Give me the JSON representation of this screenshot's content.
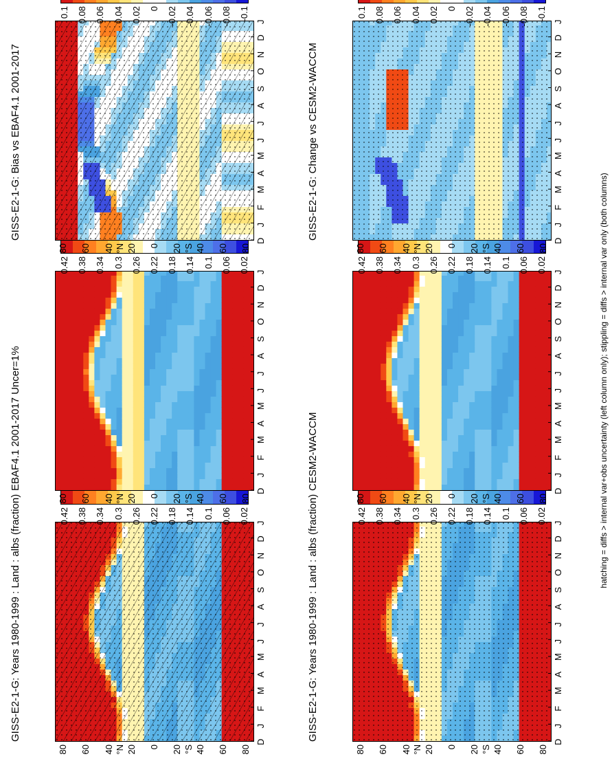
{
  "footnote": "hatching = diffs > internal var+obs uncertainty (left column only); stippling = diffs > internal var only (both columns)",
  "palette_absolute": [
    "#1717d6",
    "#3d4fe0",
    "#4d6fe8",
    "#4d8be8",
    "#4aa3e0",
    "#5ab4e8",
    "#7cc6ee",
    "#a6dbf4",
    "#ffffff",
    "#fff4b0",
    "#ffe47a",
    "#ffc94a",
    "#ffa830",
    "#ff8020",
    "#f04a14",
    "#d61616"
  ],
  "palette_difference": [
    "#1717d6",
    "#3d4fe0",
    "#4d6fe8",
    "#4d8be8",
    "#4aa3e0",
    "#7cc6ee",
    "#a6dbf4",
    "#ffffff",
    "#ffffff",
    "#fff4b0",
    "#ffe47a",
    "#ffc94a",
    "#ffa830",
    "#ff8020",
    "#f04a14",
    "#d61616"
  ],
  "chart_data": [
    {
      "type": "heatmap",
      "title": "GISS-E2-1-G: Years 1980-1999 : Land : albs (fraction)",
      "months": [
        "D",
        "J",
        "F",
        "M",
        "A",
        "M",
        "J",
        "J",
        "A",
        "S",
        "O",
        "N",
        "D",
        "J"
      ],
      "lat_ticks": [
        "80",
        "60",
        "40",
        "20",
        "0",
        "20",
        "40",
        "60",
        "80"
      ],
      "lat_hemis": [
        "N",
        "S"
      ],
      "colorbar": [
        "0.42",
        "0.38",
        "0.34",
        "0.3",
        "0.26",
        "0.22",
        "0.18",
        "0.14",
        "0.1",
        "0.06",
        "0.02"
      ],
      "overlay": "hatch+stipple",
      "field": "abs_model"
    },
    {
      "type": "heatmap",
      "title": "GISS-E2-1-G: Years 1980-1999 : Land : albs (fraction)",
      "months": [
        "D",
        "J",
        "F",
        "M",
        "A",
        "M",
        "J",
        "J",
        "A",
        "S",
        "O",
        "N",
        "D",
        "J"
      ],
      "lat_ticks": [
        "80",
        "60",
        "40",
        "20",
        "0",
        "20",
        "40",
        "60",
        "80"
      ],
      "lat_hemis": [
        "N",
        "S"
      ],
      "colorbar": [
        "0.42",
        "0.38",
        "0.34",
        "0.3",
        "0.26",
        "0.22",
        "0.18",
        "0.14",
        "0.1",
        "0.06",
        "0.02"
      ],
      "overlay": "stipple",
      "field": "abs_model"
    },
    {
      "type": "heatmap",
      "title": "EBAF4.1 2001-2017 Uncer=1%",
      "months": [
        "D",
        "J",
        "F",
        "M",
        "A",
        "M",
        "J",
        "J",
        "A",
        "S",
        "O",
        "N",
        "D",
        "J"
      ],
      "lat_ticks": [
        "80",
        "60",
        "40",
        "20",
        "0",
        "20",
        "40",
        "60",
        "80"
      ],
      "lat_hemis": [
        "N",
        "S"
      ],
      "colorbar": [
        "0.42",
        "0.38",
        "0.34",
        "0.3",
        "0.26",
        "0.22",
        "0.18",
        "0.14",
        "0.1",
        "0.06",
        "0.02"
      ],
      "overlay": "none",
      "field": "abs_obs"
    },
    {
      "type": "heatmap",
      "title": "CESM2-WACCM",
      "months": [
        "D",
        "J",
        "F",
        "M",
        "A",
        "M",
        "J",
        "J",
        "A",
        "S",
        "O",
        "N",
        "D",
        "J"
      ],
      "lat_ticks": [
        "80",
        "60",
        "40",
        "20",
        "0",
        "20",
        "40",
        "60",
        "80"
      ],
      "lat_hemis": [
        "N",
        "S"
      ],
      "colorbar": [
        "0.42",
        "0.38",
        "0.34",
        "0.3",
        "0.26",
        "0.22",
        "0.18",
        "0.14",
        "0.1",
        "0.06",
        "0.02"
      ],
      "overlay": "none",
      "field": "abs_ref"
    },
    {
      "type": "heatmap",
      "title": "GISS-E2-1-G: Bias vs EBAF4.1 2001-2017",
      "months": [
        "D",
        "J",
        "F",
        "M",
        "A",
        "M",
        "J",
        "J",
        "A",
        "S",
        "O",
        "N",
        "D",
        "J"
      ],
      "lat_ticks": [
        "80",
        "60",
        "40",
        "20",
        "0",
        "20",
        "40",
        "60",
        "80"
      ],
      "lat_hemis": [
        "N",
        "S"
      ],
      "colorbar": [
        "0.1",
        "0.08",
        "0.06",
        "0.04",
        "0.02",
        "0",
        "-0.02",
        "-0.04",
        "-0.06",
        "-0.08",
        "-0.1"
      ],
      "overlay": "hatch+stipple",
      "field": "diff_bias"
    },
    {
      "type": "heatmap",
      "title": "GISS-E2-1-G: Change vs CESM2-WACCM",
      "months": [
        "D",
        "J",
        "F",
        "M",
        "A",
        "M",
        "J",
        "J",
        "A",
        "S",
        "O",
        "N",
        "D",
        "J"
      ],
      "lat_ticks": [
        "80",
        "60",
        "40",
        "20",
        "0",
        "20",
        "40",
        "60",
        "80"
      ],
      "lat_hemis": [
        "N",
        "S"
      ],
      "colorbar": [
        "0.1",
        "0.08",
        "0.06",
        "0.04",
        "0.02",
        "0",
        "-0.02",
        "-0.04",
        "-0.06",
        "-0.08",
        "-0.1"
      ],
      "overlay": "stipple",
      "field": "diff_change"
    }
  ]
}
